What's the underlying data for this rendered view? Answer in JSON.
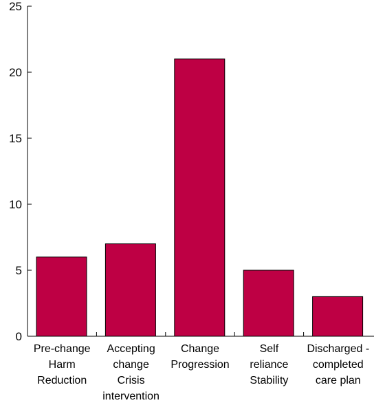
{
  "chart_data": {
    "type": "bar",
    "title": "",
    "xlabel": "",
    "ylabel": "",
    "ylim": [
      0,
      25
    ],
    "yticks": [
      0,
      5,
      10,
      15,
      20,
      25
    ],
    "grid": false,
    "legend": "none",
    "categories": [
      [
        "Pre-change",
        "Harm",
        "Reduction"
      ],
      [
        "Accepting",
        "change",
        "Crisis",
        "intervention"
      ],
      [
        "Change",
        "Progression"
      ],
      [
        "Self",
        "reliance",
        "Stability"
      ],
      [
        "Discharged -",
        "completed",
        "care plan"
      ]
    ],
    "values": [
      6,
      7,
      21,
      5,
      3
    ],
    "bar_color": "#be0044"
  }
}
